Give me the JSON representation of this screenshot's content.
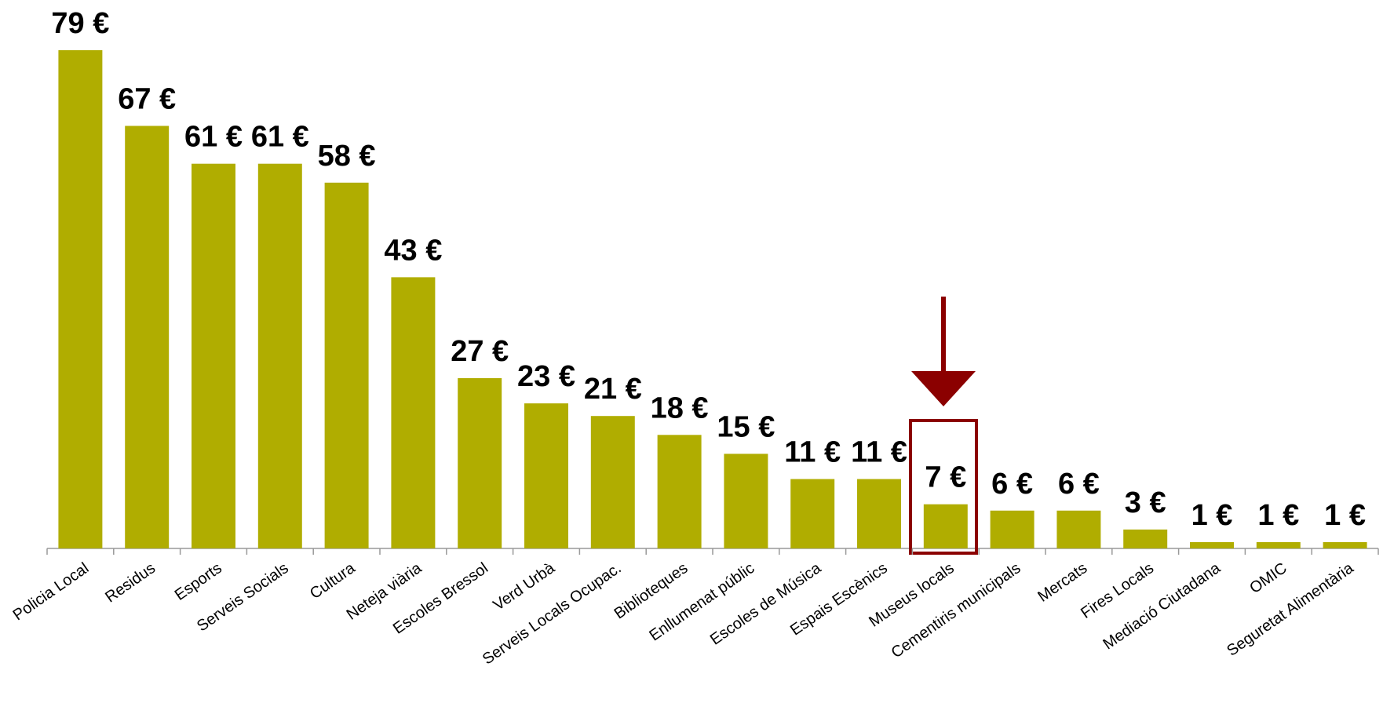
{
  "chart_data": {
    "type": "bar",
    "categories": [
      "Policia Local",
      "Residus",
      "Esports",
      "Serveis Socials",
      "Cultura",
      "Neteja viària",
      "Escoles Bressol",
      "Verd Urbà",
      "Serveis Locals Ocupac.",
      "Biblioteques",
      "Enllumenat públic",
      "Escoles de Música",
      "Espais Escènics",
      "Museus locals",
      "Cementiris municipals",
      "Mercats",
      "Fires Locals",
      "Mediació Ciutadana",
      "OMIC",
      "Seguretat Alimentària"
    ],
    "values": [
      79,
      67,
      61,
      61,
      58,
      43,
      27,
      23,
      21,
      18,
      15,
      11,
      11,
      7,
      6,
      6,
      3,
      1,
      1,
      1
    ],
    "value_labels": [
      "79 €",
      "67 €",
      "61 €",
      "61 €",
      "58 €",
      "43 €",
      "27 €",
      "23 €",
      "21 €",
      "18 €",
      "15 €",
      "11 €",
      "11 €",
      "7 €",
      "6 €",
      "6 €",
      "3 €",
      "1 €",
      "1 €",
      "1 €"
    ],
    "color": "#b0ad00"
  }
}
